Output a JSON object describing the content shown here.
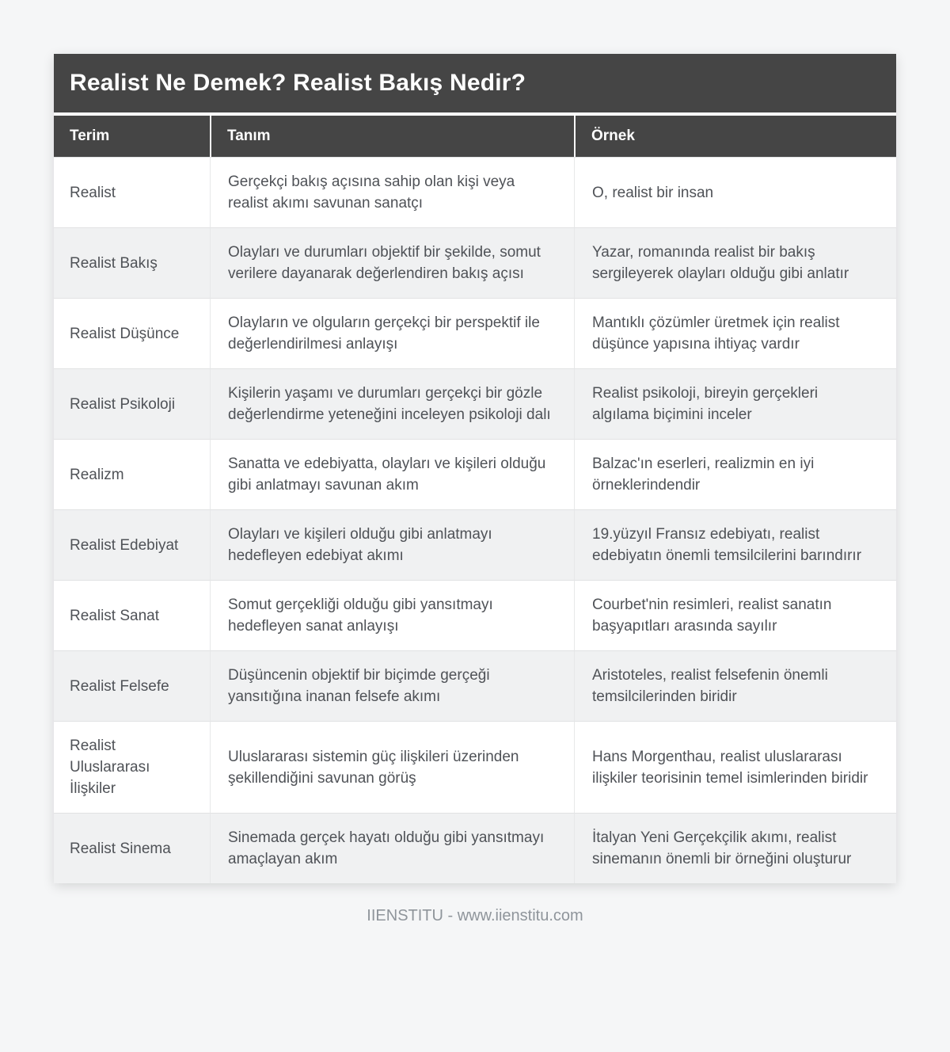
{
  "header": {
    "title": "Realist Ne Demek? Realist Bakış Nedir?"
  },
  "table": {
    "columns": [
      "Terim",
      "Tanım",
      "Örnek"
    ],
    "rows": [
      {
        "term": "Realist",
        "definition": "Gerçekçi bakış açısına sahip olan kişi veya realist akımı savunan sanatçı",
        "example": "O, realist bir insan"
      },
      {
        "term": "Realist Bakış",
        "definition": "Olayları ve durumları objektif bir şekilde, somut verilere dayanarak değerlendiren bakış açısı",
        "example": "Yazar, romanında realist bir bakış sergileyerek olayları olduğu gibi anlatır"
      },
      {
        "term": "Realist Düşünce",
        "definition": "Olayların ve olguların gerçekçi bir perspektif ile değerlendirilmesi anlayışı",
        "example": "Mantıklı çözümler üretmek için realist düşünce yapısına ihtiyaç vardır"
      },
      {
        "term": "Realist Psikoloji",
        "definition": "Kişilerin yaşamı ve durumları gerçekçi bir gözle değerlendirme yeteneğini inceleyen psikoloji dalı",
        "example": "Realist psikoloji, bireyin gerçekleri algılama biçimini inceler"
      },
      {
        "term": "Realizm",
        "definition": "Sanatta ve edebiyatta, olayları ve kişileri olduğu gibi anlatmayı savunan akım",
        "example": "Balzac'ın eserleri, realizmin en iyi örneklerindendir"
      },
      {
        "term": "Realist Edebiyat",
        "definition": "Olayları ve kişileri olduğu gibi anlatmayı hedefleyen edebiyat akımı",
        "example": "19.yüzyıl Fransız edebiyatı, realist edebiyatın önemli temsilcilerini barındırır"
      },
      {
        "term": "Realist Sanat",
        "definition": "Somut gerçekliği olduğu gibi yansıtmayı hedefleyen sanat anlayışı",
        "example": "Courbet'nin resimleri, realist sanatın başyapıtları arasında sayılır"
      },
      {
        "term": "Realist Felsefe",
        "definition": "Düşüncenin objektif bir biçimde gerçeği yansıtığına inanan felsefe akımı",
        "example": "Aristoteles, realist felsefenin önemli temsilcilerinden biridir"
      },
      {
        "term": "Realist Uluslararası İlişkiler",
        "definition": "Uluslararası sistemin güç ilişkileri üzerinden şekillendiğini savunan görüş",
        "example": "Hans Morgenthau, realist uluslararası ilişkiler teorisinin temel isimlerinden biridir"
      },
      {
        "term": "Realist Sinema",
        "definition": "Sinemada gerçek hayatı olduğu gibi yansıtmayı amaçlayan akım",
        "example": "İtalyan Yeni Gerçekçilik akımı, realist sinemanın önemli bir örneğini oluşturur"
      }
    ]
  },
  "footer": {
    "credit": "IIENSTITU - www.iienstitu.com"
  },
  "colors": {
    "header_bg": "#454545",
    "row_alt_bg": "#f0f1f2",
    "body_text": "#4f5257",
    "page_bg": "#f5f6f7",
    "footer_text": "#8f959b"
  }
}
